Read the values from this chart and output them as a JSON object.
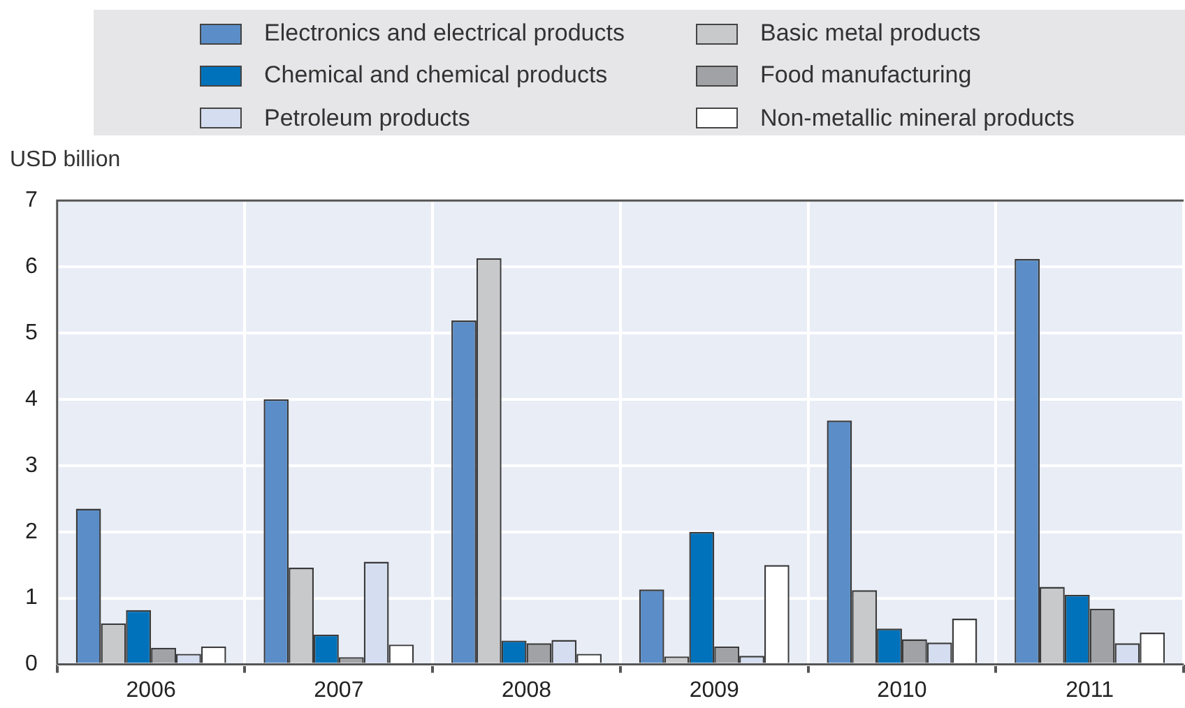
{
  "chart_data": {
    "type": "bar",
    "ylabel": "USD billion",
    "categories": [
      "2006",
      "2007",
      "2008",
      "2009",
      "2010",
      "2011"
    ],
    "series": [
      {
        "name": "Electronics and electrical products",
        "color": "#5b8ec8",
        "values": [
          2.35,
          4.0,
          5.19,
          1.13,
          3.68,
          6.12
        ]
      },
      {
        "name": "Basic metal products",
        "color": "#c8c9cb",
        "values": [
          0.62,
          1.46,
          6.13,
          0.12,
          1.12,
          1.17
        ]
      },
      {
        "name": "Chemical and chemical products",
        "color": "#0072bb",
        "values": [
          0.82,
          0.45,
          0.36,
          2.0,
          0.54,
          1.05
        ]
      },
      {
        "name": "Food manufacturing",
        "color": "#a0a2a6",
        "values": [
          0.25,
          0.11,
          0.32,
          0.27,
          0.38,
          0.84
        ]
      },
      {
        "name": "Petroleum products",
        "color": "#d5ddf0",
        "values": [
          0.16,
          1.55,
          0.37,
          0.13,
          0.33,
          0.32
        ]
      },
      {
        "name": "Non-metallic mineral products",
        "color": "#ffffff",
        "values": [
          0.27,
          0.3,
          0.16,
          1.5,
          0.69,
          0.48
        ]
      }
    ],
    "ylim": [
      0,
      7
    ],
    "yticks": [
      0,
      1,
      2,
      3,
      4,
      5,
      6,
      7
    ],
    "grid": true,
    "legend": "top"
  }
}
